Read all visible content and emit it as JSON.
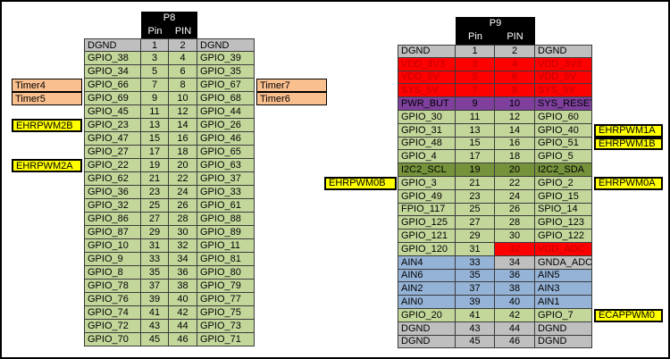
{
  "colors": {
    "green": "#c4d79b",
    "darkgreen": "#76933c",
    "gray": "#bfbfbf",
    "red": "#ff0000",
    "purple": "#7e3f9d",
    "blue": "#95b3d7",
    "orange": "#fabf8f",
    "yellow": "#ffff00",
    "darkred": "#c00000",
    "black": "#000000",
    "white": "#ffffff"
  },
  "tables": [
    {
      "name": "P8",
      "title": "P8",
      "pin_col_headers": [
        "Pin",
        "PIN"
      ],
      "rows": [
        {
          "left": "DGND",
          "pin1": "1",
          "pin2": "2",
          "right": "DGND",
          "color": "gray"
        },
        {
          "left": "GPIO_38",
          "pin1": "3",
          "pin2": "4",
          "right": "GPIO_39",
          "color": "green"
        },
        {
          "left": "GPIO_34",
          "pin1": "5",
          "pin2": "6",
          "right": "GPIO_35",
          "color": "green"
        },
        {
          "left": "GPIO_66",
          "pin1": "7",
          "pin2": "8",
          "right": "GPIO_67",
          "color": "green",
          "label_left": {
            "text": "Timer4",
            "color": "orange"
          },
          "label_right": {
            "text": "Timer7",
            "color": "orange"
          }
        },
        {
          "left": "GPIO_69",
          "pin1": "9",
          "pin2": "10",
          "right": "GPIO_68",
          "color": "green",
          "label_left": {
            "text": "Timer5",
            "color": "orange"
          },
          "label_right": {
            "text": "Timer6",
            "color": "orange"
          }
        },
        {
          "left": "GPIO_45",
          "pin1": "11",
          "pin2": "12",
          "right": "GPIO_44",
          "color": "green"
        },
        {
          "left": "GPIO_23",
          "pin1": "13",
          "pin2": "14",
          "right": "GPIO_26",
          "color": "green",
          "label_left": {
            "text": "EHRPWM2B",
            "color": "yellow"
          }
        },
        {
          "left": "GPIO_47",
          "pin1": "15",
          "pin2": "16",
          "right": "GPIO_46",
          "color": "green"
        },
        {
          "left": "GPIO_27",
          "pin1": "17",
          "pin2": "18",
          "right": "GPIO_65",
          "color": "green"
        },
        {
          "left": "GPIO_22",
          "pin1": "19",
          "pin2": "20",
          "right": "GPIO_63",
          "color": "green",
          "label_left": {
            "text": "EHRPWM2A",
            "color": "yellow"
          }
        },
        {
          "left": "GPIO_62",
          "pin1": "21",
          "pin2": "22",
          "right": "GPIO_37",
          "color": "green"
        },
        {
          "left": "GPIO_36",
          "pin1": "23",
          "pin2": "24",
          "right": "GPIO_33",
          "color": "green"
        },
        {
          "left": "GPIO_32",
          "pin1": "25",
          "pin2": "26",
          "right": "GPIO_61",
          "color": "green"
        },
        {
          "left": "GPIO_86",
          "pin1": "27",
          "pin2": "28",
          "right": "GPIO_88",
          "color": "green"
        },
        {
          "left": "GPIO_87",
          "pin1": "29",
          "pin2": "30",
          "right": "GPIO_89",
          "color": "green"
        },
        {
          "left": "GPIO_10",
          "pin1": "31",
          "pin2": "32",
          "right": "GPIO_11",
          "color": "green"
        },
        {
          "left": "GPIO_9",
          "pin1": "33",
          "pin2": "34",
          "right": "GPIO_81",
          "color": "green"
        },
        {
          "left": "GPIO_8",
          "pin1": "35",
          "pin2": "36",
          "right": "GPIO_80",
          "color": "green"
        },
        {
          "left": "GPIO_78",
          "pin1": "37",
          "pin2": "38",
          "right": "GPIO_79",
          "color": "green"
        },
        {
          "left": "GPIO_76",
          "pin1": "39",
          "pin2": "40",
          "right": "GPIO_77",
          "color": "green"
        },
        {
          "left": "GPIO_74",
          "pin1": "41",
          "pin2": "42",
          "right": "GPIO_75",
          "color": "green"
        },
        {
          "left": "GPIO_72",
          "pin1": "43",
          "pin2": "44",
          "right": "GPIO_73",
          "color": "green"
        },
        {
          "left": "GPIO_70",
          "pin1": "45",
          "pin2": "46",
          "right": "GPIO_71",
          "color": "green"
        }
      ]
    },
    {
      "name": "P9",
      "title": "P9",
      "pin_col_headers": [
        "Pin",
        "PIN"
      ],
      "rows": [
        {
          "left": "DGND",
          "pin1": "1",
          "pin2": "2",
          "right": "DGND",
          "color": "gray"
        },
        {
          "left": "VDD_3V3",
          "pin1": "3",
          "pin2": "4",
          "right": "VDD_3V3",
          "color": "red",
          "text_color": "darkred"
        },
        {
          "left": "VDD_5V",
          "pin1": "5",
          "pin2": "6",
          "right": "VDD_5V",
          "color": "red",
          "text_color": "darkred"
        },
        {
          "left": "SYS_5V",
          "pin1": "7",
          "pin2": "8",
          "right": "SYS_5V",
          "color": "red",
          "text_color": "darkred"
        },
        {
          "left": "PWR_BUT",
          "pin1": "9",
          "pin2": "10",
          "right": "SYS_RESET",
          "color": "purple"
        },
        {
          "left": "GPIO_30",
          "pin1": "11",
          "pin2": "12",
          "right": "GPIO_60",
          "color": "green"
        },
        {
          "left": "GPIO_31",
          "pin1": "13",
          "pin2": "14",
          "right": "GPIO_40",
          "color": "green",
          "label_right": {
            "text": "EHRPWM1A",
            "color": "yellow"
          }
        },
        {
          "left": "GPIO_48",
          "pin1": "15",
          "pin2": "16",
          "right": "GPIO_51",
          "color": "green",
          "label_right": {
            "text": "EHRPWM1B",
            "color": "yellow"
          }
        },
        {
          "left": "GPIO_4",
          "pin1": "17",
          "pin2": "18",
          "right": "GPIO_5",
          "color": "green"
        },
        {
          "left": "I2C2_SCL",
          "pin1": "19",
          "pin2": "20",
          "right": "I2C2_SDA",
          "color": "darkgreen"
        },
        {
          "left": "GPIO_3",
          "pin1": "21",
          "pin2": "22",
          "right": "GPIO_2",
          "color": "green",
          "label_left": {
            "text": "EHRPWM0B",
            "color": "yellow"
          },
          "label_right": {
            "text": "EHRPWM0A",
            "color": "yellow"
          }
        },
        {
          "left": "GPIO_49",
          "pin1": "23",
          "pin2": "24",
          "right": "GPIO_15",
          "color": "green"
        },
        {
          "left": "FPIO_117",
          "pin1": "25",
          "pin2": "26",
          "right": "SPIO_14",
          "color": "green"
        },
        {
          "left": "GPIO_125",
          "pin1": "27",
          "pin2": "28",
          "right": "GPIO_123",
          "color": "green"
        },
        {
          "left": "GPIO_121",
          "pin1": "29",
          "pin2": "30",
          "right": "GPIO_122",
          "color": "green"
        },
        {
          "left": "GPIO_120",
          "pin1": "31",
          "pin2": "32",
          "right": "VDD_ADC",
          "colors": [
            "green",
            "green",
            "red",
            "red"
          ],
          "text_colors": [
            null,
            null,
            "darkred",
            "darkred"
          ]
        },
        {
          "left": "AIN4",
          "pin1": "33",
          "pin2": "34",
          "right": "GNDA_ADC",
          "colors": [
            "blue",
            "blue",
            "gray",
            "gray"
          ]
        },
        {
          "left": "AIN6",
          "pin1": "35",
          "pin2": "36",
          "right": "AIN5",
          "color": "blue"
        },
        {
          "left": "AIN2",
          "pin1": "37",
          "pin2": "38",
          "right": "AIN3",
          "color": "blue"
        },
        {
          "left": "AIN0",
          "pin1": "39",
          "pin2": "40",
          "right": "AIN1",
          "color": "blue"
        },
        {
          "left": "GPIO_20",
          "pin1": "41",
          "pin2": "42",
          "right": "GPIO_7",
          "color": "green",
          "label_right": {
            "text": "ECAPPWM0",
            "color": "yellow"
          }
        },
        {
          "left": "DGND",
          "pin1": "43",
          "pin2": "44",
          "right": "DGND",
          "color": "gray"
        },
        {
          "left": "DGND",
          "pin1": "45",
          "pin2": "46",
          "right": "DGND",
          "color": "gray"
        }
      ]
    }
  ]
}
